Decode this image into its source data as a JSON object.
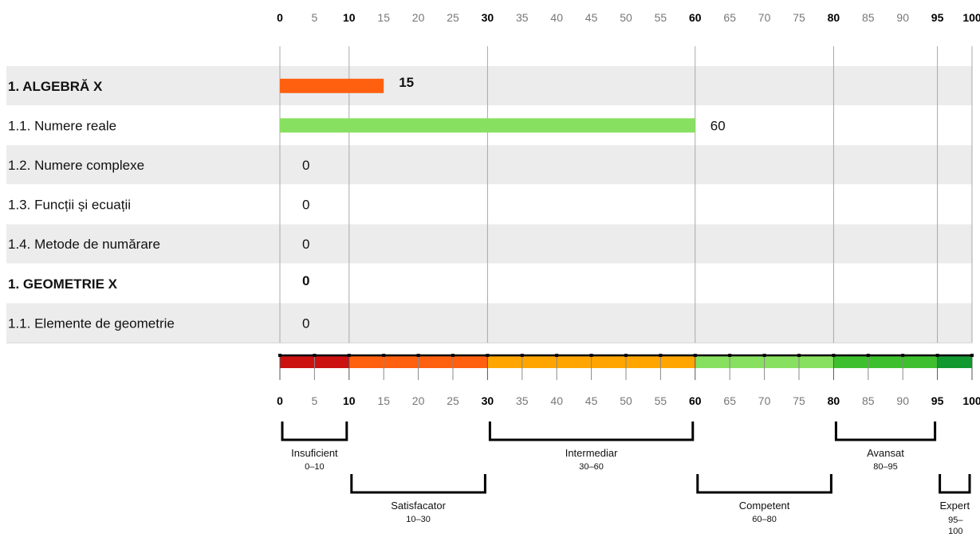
{
  "chart_data": {
    "type": "bar",
    "orientation": "horizontal",
    "xlim": [
      0,
      100
    ],
    "ticks": [
      0,
      5,
      10,
      15,
      20,
      25,
      30,
      35,
      40,
      45,
      50,
      55,
      60,
      65,
      70,
      75,
      80,
      85,
      90,
      95,
      100
    ],
    "major_ticks": [
      0,
      10,
      30,
      60,
      80,
      95,
      100
    ],
    "grid": true,
    "categories": [
      "1. ALGEBRĂ X",
      "1.1. Numere reale",
      "1.2. Numere complexe",
      "1.3. Funcții și ecuații",
      "1.4. Metode de numărare",
      "1. GEOMETRIE X",
      "1.1. Elemente de geometrie"
    ],
    "values": [
      15,
      60,
      0,
      0,
      0,
      0,
      0
    ],
    "bold_rows": [
      true,
      false,
      false,
      false,
      false,
      true,
      false
    ],
    "levels": [
      {
        "name": "Insuficient",
        "range": "0–10",
        "from": 0,
        "to": 10,
        "color": "#cc1111"
      },
      {
        "name": "Satisfacator",
        "range": "10–30",
        "from": 10,
        "to": 30,
        "color": "#ff6010"
      },
      {
        "name": "Intermediar",
        "range": "30–60",
        "from": 30,
        "to": 60,
        "color": "#ffa500"
      },
      {
        "name": "Competent",
        "range": "60–80",
        "from": 60,
        "to": 80,
        "color": "#88e060"
      },
      {
        "name": "Avansat",
        "range": "80–95",
        "from": 80,
        "to": 95,
        "color": "#3ec02e"
      },
      {
        "name": "Expert",
        "range": "95–100",
        "from": 95,
        "to": 100,
        "color": "#119930"
      }
    ]
  }
}
